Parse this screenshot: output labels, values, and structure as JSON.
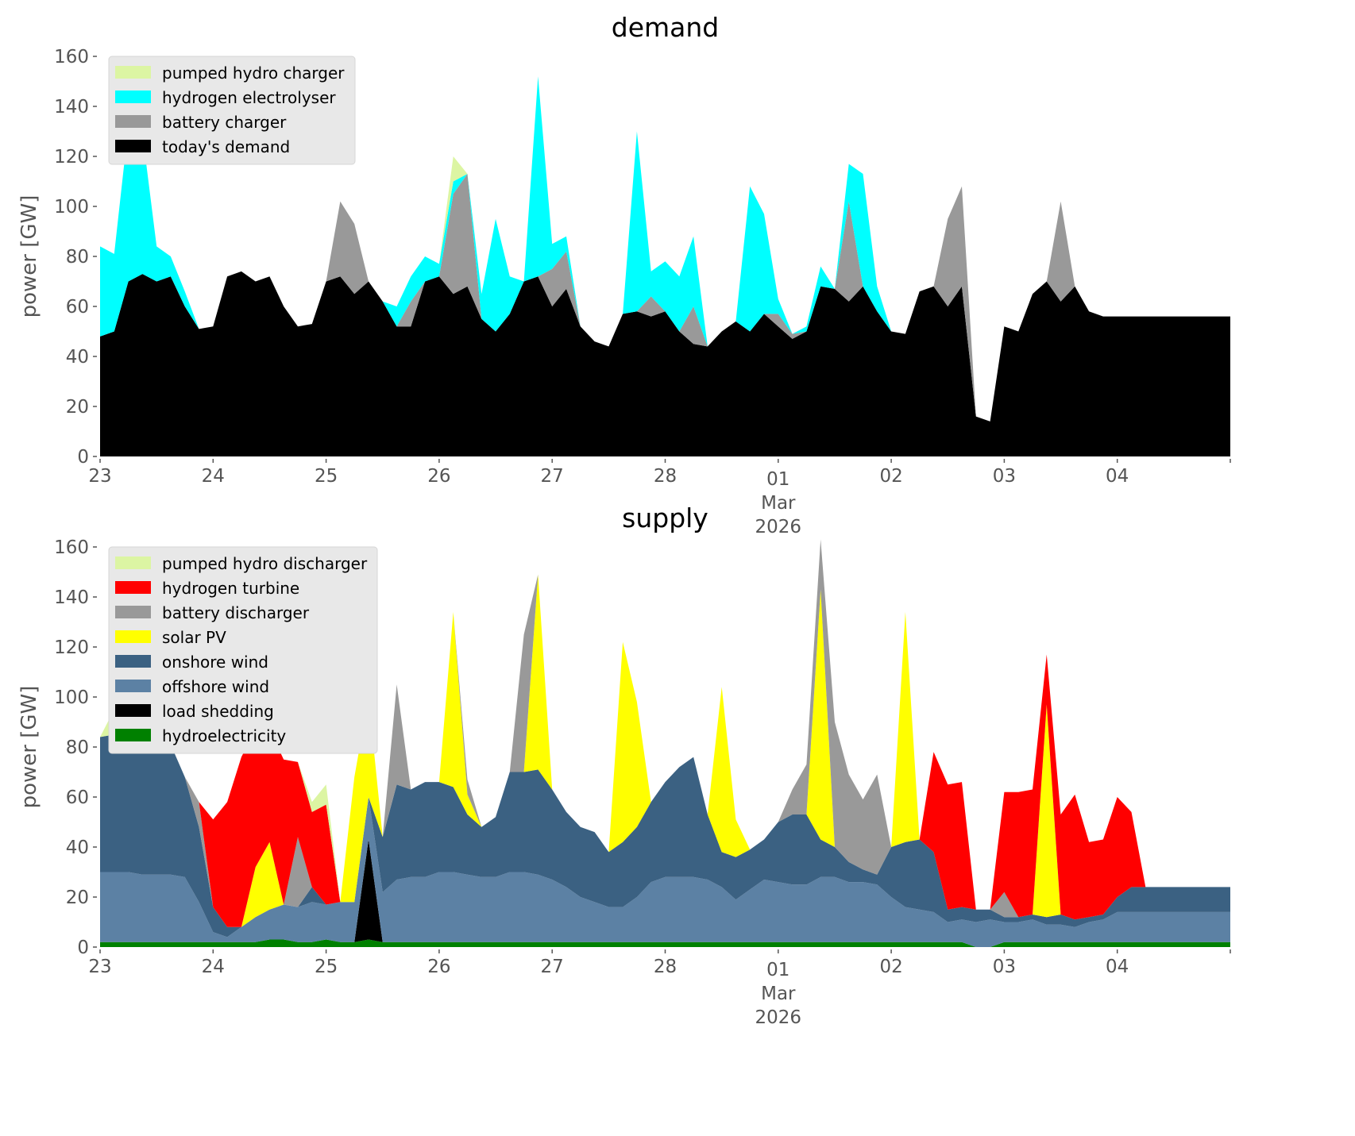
{
  "chart_data": [
    {
      "type": "area",
      "stacked": true,
      "title": "demand",
      "xlabel": "",
      "ylabel": "power [GW]",
      "ylim": [
        0,
        160
      ],
      "yticks": [
        0,
        20,
        40,
        60,
        80,
        100,
        120,
        140,
        160
      ],
      "x_start": "2026-02-23T00:00",
      "x_end": "2026-03-05T00:00",
      "x_step_hours": 3,
      "xticks": [
        {
          "label": "23",
          "day": 0
        },
        {
          "label": "24",
          "day": 1
        },
        {
          "label": "25",
          "day": 2
        },
        {
          "label": "26",
          "day": 3
        },
        {
          "label": "27",
          "day": 4
        },
        {
          "label": "28",
          "day": 5
        },
        {
          "label": "01",
          "sub": [
            "Mar",
            "2026"
          ],
          "day": 6
        },
        {
          "label": "02",
          "day": 7
        },
        {
          "label": "03",
          "day": 8
        },
        {
          "label": "04",
          "day": 9
        },
        {
          "label": "",
          "day": 10
        }
      ],
      "grid": false,
      "legend_position": "top-left",
      "series": [
        {
          "name": "today's demand",
          "color": "#000000",
          "values": [
            48,
            50,
            70,
            73,
            70,
            72,
            60,
            51,
            52,
            72,
            74,
            70,
            72,
            60,
            52,
            53,
            70,
            72,
            65,
            70,
            62,
            52,
            52,
            70,
            72,
            65,
            68,
            55,
            50,
            57,
            70,
            72,
            60,
            67,
            52,
            46,
            44,
            57,
            58,
            56,
            58,
            50,
            45,
            44,
            50,
            54,
            50,
            57,
            52,
            47,
            50,
            68,
            67,
            62,
            68,
            58,
            50,
            49,
            66,
            68,
            60,
            68,
            16,
            14,
            52,
            50,
            65,
            70,
            62,
            68,
            58,
            56,
            56,
            56,
            56,
            56,
            56,
            56,
            56,
            56,
            56
          ]
        },
        {
          "name": "battery charger",
          "color": "#999999",
          "values": [
            0,
            0,
            0,
            0,
            0,
            0,
            0,
            0,
            0,
            0,
            0,
            0,
            0,
            0,
            0,
            0,
            0,
            30,
            28,
            0,
            0,
            0,
            10,
            0,
            0,
            40,
            45,
            0,
            0,
            0,
            0,
            0,
            15,
            15,
            0,
            0,
            0,
            0,
            0,
            8,
            0,
            0,
            15,
            0,
            0,
            0,
            0,
            0,
            5,
            2,
            0,
            0,
            0,
            40,
            0,
            0,
            0,
            0,
            0,
            0,
            35,
            40,
            0,
            0,
            0,
            0,
            0,
            0,
            40,
            0,
            0,
            0,
            0,
            0,
            0,
            0,
            0,
            0,
            0,
            0,
            0
          ]
        },
        {
          "name": "hydrogen electrolyser",
          "color": "#00ffff",
          "values": [
            36,
            31,
            62,
            56,
            14,
            8,
            6,
            0,
            0,
            0,
            0,
            0,
            0,
            0,
            0,
            0,
            0,
            0,
            0,
            0,
            0,
            8,
            10,
            10,
            5,
            5,
            0,
            10,
            45,
            15,
            0,
            80,
            10,
            6,
            0,
            0,
            0,
            0,
            72,
            10,
            20,
            22,
            28,
            0,
            0,
            0,
            58,
            40,
            6,
            0,
            2,
            8,
            0,
            15,
            45,
            10,
            0,
            0,
            0,
            0,
            0,
            0,
            0,
            0,
            0,
            0,
            0,
            0,
            0,
            0,
            0,
            0,
            0,
            0,
            0,
            0,
            0,
            0,
            0,
            0,
            0
          ]
        },
        {
          "name": "pumped hydro charger",
          "color": "#dcf5a3",
          "values": [
            0,
            0,
            0,
            0,
            0,
            0,
            0,
            0,
            0,
            0,
            0,
            0,
            0,
            0,
            0,
            0,
            0,
            0,
            0,
            0,
            0,
            0,
            0,
            0,
            0,
            10,
            0,
            0,
            0,
            0,
            0,
            0,
            0,
            0,
            0,
            0,
            0,
            0,
            0,
            0,
            0,
            0,
            0,
            0,
            0,
            0,
            0,
            0,
            0,
            0,
            0,
            0,
            0,
            0,
            0,
            0,
            0,
            0,
            0,
            0,
            0,
            0,
            0,
            0,
            0,
            0,
            0,
            0,
            0,
            0,
            0,
            0,
            0,
            0,
            0,
            0,
            0,
            0,
            0,
            0,
            0
          ]
        }
      ],
      "legend_order": [
        "pumped hydro charger",
        "hydrogen electrolyser",
        "battery charger",
        "today's demand"
      ]
    },
    {
      "type": "area",
      "stacked": true,
      "title": "supply",
      "xlabel": "",
      "ylabel": "power [GW]",
      "ylim": [
        0,
        160
      ],
      "yticks": [
        0,
        20,
        40,
        60,
        80,
        100,
        120,
        140,
        160
      ],
      "x_start": "2026-02-23T00:00",
      "x_end": "2026-03-05T00:00",
      "x_step_hours": 3,
      "xticks": [
        {
          "label": "23",
          "day": 0
        },
        {
          "label": "24",
          "day": 1
        },
        {
          "label": "25",
          "day": 2
        },
        {
          "label": "26",
          "day": 3
        },
        {
          "label": "27",
          "day": 4
        },
        {
          "label": "28",
          "day": 5
        },
        {
          "label": "01",
          "sub": [
            "Mar",
            "2026"
          ],
          "day": 6
        },
        {
          "label": "02",
          "day": 7
        },
        {
          "label": "03",
          "day": 8
        },
        {
          "label": "04",
          "day": 9
        },
        {
          "label": "",
          "day": 10
        }
      ],
      "grid": false,
      "legend_position": "top-left",
      "series": [
        {
          "name": "hydroelectricity",
          "color": "#008000",
          "values": [
            2,
            2,
            2,
            2,
            2,
            2,
            2,
            2,
            2,
            2,
            2,
            2,
            3,
            3,
            2,
            2,
            3,
            2,
            2,
            3,
            2,
            2,
            2,
            2,
            2,
            2,
            2,
            2,
            2,
            2,
            2,
            2,
            2,
            2,
            2,
            2,
            2,
            2,
            2,
            2,
            2,
            2,
            2,
            2,
            2,
            2,
            2,
            2,
            2,
            2,
            2,
            2,
            2,
            2,
            2,
            2,
            2,
            2,
            2,
            2,
            2,
            2,
            0,
            0,
            2,
            2,
            2,
            2,
            2,
            2,
            2,
            2,
            2,
            2,
            2,
            2,
            2,
            2,
            2,
            2,
            2
          ]
        },
        {
          "name": "load shedding",
          "color": "#000000",
          "values": [
            0,
            0,
            0,
            0,
            0,
            0,
            0,
            0,
            0,
            0,
            0,
            0,
            0,
            0,
            0,
            0,
            0,
            0,
            0,
            40,
            0,
            0,
            0,
            0,
            0,
            0,
            0,
            0,
            0,
            0,
            0,
            0,
            0,
            0,
            0,
            0,
            0,
            0,
            0,
            0,
            0,
            0,
            0,
            0,
            0,
            0,
            0,
            0,
            0,
            0,
            0,
            0,
            0,
            0,
            0,
            0,
            0,
            0,
            0,
            0,
            0,
            0,
            0,
            0,
            0,
            0,
            0,
            0,
            0,
            0,
            0,
            0,
            0,
            0,
            0,
            0,
            0,
            0,
            0,
            0,
            0
          ]
        },
        {
          "name": "offshore wind",
          "color": "#5c81a4",
          "values": [
            28,
            28,
            28,
            27,
            27,
            27,
            26,
            16,
            4,
            2,
            6,
            10,
            12,
            14,
            14,
            16,
            14,
            16,
            16,
            17,
            20,
            25,
            26,
            26,
            28,
            28,
            27,
            26,
            26,
            28,
            28,
            27,
            25,
            22,
            18,
            16,
            14,
            14,
            18,
            24,
            26,
            26,
            26,
            25,
            22,
            17,
            21,
            25,
            24,
            23,
            23,
            26,
            26,
            24,
            24,
            23,
            18,
            14,
            13,
            12,
            8,
            9,
            10,
            11,
            8,
            8,
            9,
            7,
            7,
            6,
            8,
            9,
            12,
            12,
            12,
            12,
            12,
            12,
            12,
            12,
            12
          ]
        },
        {
          "name": "onshore wind",
          "color": "#3b6182",
          "values": [
            54,
            55,
            50,
            52,
            56,
            52,
            40,
            30,
            10,
            4,
            0,
            0,
            0,
            0,
            0,
            6,
            0,
            0,
            0,
            0,
            22,
            38,
            35,
            38,
            36,
            34,
            24,
            20,
            24,
            40,
            40,
            42,
            36,
            30,
            28,
            28,
            22,
            26,
            28,
            32,
            38,
            44,
            48,
            26,
            14,
            17,
            16,
            16,
            24,
            28,
            28,
            15,
            12,
            8,
            5,
            4,
            20,
            26,
            28,
            24,
            5,
            5,
            5,
            4,
            2,
            2,
            2,
            3,
            4,
            3,
            2,
            2,
            6,
            10,
            10,
            10,
            10,
            10,
            10,
            10,
            10
          ]
        },
        {
          "name": "solar PV",
          "color": "#ffff00",
          "values": [
            0,
            0,
            2,
            0,
            0,
            0,
            0,
            0,
            0,
            0,
            0,
            20,
            27,
            0,
            0,
            0,
            0,
            0,
            50,
            40,
            0,
            0,
            0,
            0,
            0,
            70,
            8,
            0,
            0,
            0,
            0,
            78,
            0,
            0,
            0,
            0,
            0,
            80,
            50,
            0,
            0,
            0,
            0,
            0,
            66,
            15,
            0,
            0,
            0,
            0,
            0,
            100,
            0,
            0,
            0,
            0,
            0,
            92,
            0,
            0,
            0,
            0,
            0,
            0,
            0,
            0,
            0,
            85,
            0,
            0,
            0,
            0,
            0,
            0,
            0,
            0,
            0,
            0,
            0,
            0,
            0
          ]
        },
        {
          "name": "battery discharger",
          "color": "#999999",
          "values": [
            0,
            0,
            0,
            0,
            0,
            0,
            0,
            10,
            0,
            0,
            0,
            0,
            0,
            0,
            28,
            0,
            0,
            0,
            0,
            0,
            0,
            40,
            0,
            0,
            0,
            0,
            6,
            0,
            0,
            0,
            55,
            0,
            0,
            0,
            0,
            0,
            0,
            0,
            0,
            0,
            0,
            0,
            0,
            0,
            0,
            0,
            0,
            0,
            0,
            10,
            20,
            20,
            50,
            35,
            28,
            40,
            0,
            0,
            0,
            0,
            0,
            0,
            0,
            0,
            10,
            0,
            0,
            0,
            0,
            0,
            0,
            0,
            0,
            0,
            0,
            0,
            0,
            0,
            0,
            0,
            0
          ]
        },
        {
          "name": "hydrogen turbine",
          "color": "#ff0000",
          "values": [
            0,
            0,
            0,
            0,
            0,
            0,
            0,
            0,
            35,
            50,
            68,
            55,
            45,
            58,
            30,
            30,
            40,
            0,
            0,
            0,
            0,
            0,
            0,
            0,
            0,
            0,
            0,
            0,
            0,
            0,
            0,
            0,
            0,
            0,
            0,
            0,
            0,
            0,
            0,
            0,
            0,
            0,
            0,
            0,
            0,
            0,
            0,
            0,
            0,
            0,
            0,
            0,
            0,
            0,
            0,
            0,
            0,
            0,
            0,
            40,
            50,
            50,
            0,
            0,
            40,
            50,
            50,
            20,
            40,
            50,
            30,
            30,
            40,
            30,
            0,
            0,
            0,
            0,
            0,
            0,
            0
          ]
        },
        {
          "name": "pumped hydro discharger",
          "color": "#dcf5a3",
          "values": [
            0,
            10,
            50,
            15,
            0,
            0,
            0,
            0,
            0,
            0,
            0,
            0,
            0,
            0,
            0,
            4,
            8,
            0,
            0,
            0,
            0,
            0,
            0,
            0,
            0,
            0,
            0,
            0,
            0,
            0,
            0,
            0,
            0,
            0,
            0,
            0,
            0,
            0,
            0,
            0,
            0,
            0,
            0,
            0,
            0,
            0,
            0,
            0,
            0,
            0,
            0,
            0,
            0,
            0,
            0,
            0,
            0,
            0,
            0,
            0,
            0,
            0,
            0,
            0,
            0,
            0,
            0,
            0,
            0,
            0,
            0,
            0,
            0,
            0,
            0,
            0,
            0,
            0,
            0,
            0,
            0
          ]
        }
      ],
      "legend_order": [
        "pumped hydro discharger",
        "hydrogen turbine",
        "battery discharger",
        "solar PV",
        "onshore wind",
        "offshore wind",
        "load shedding",
        "hydroelectricity"
      ]
    }
  ]
}
